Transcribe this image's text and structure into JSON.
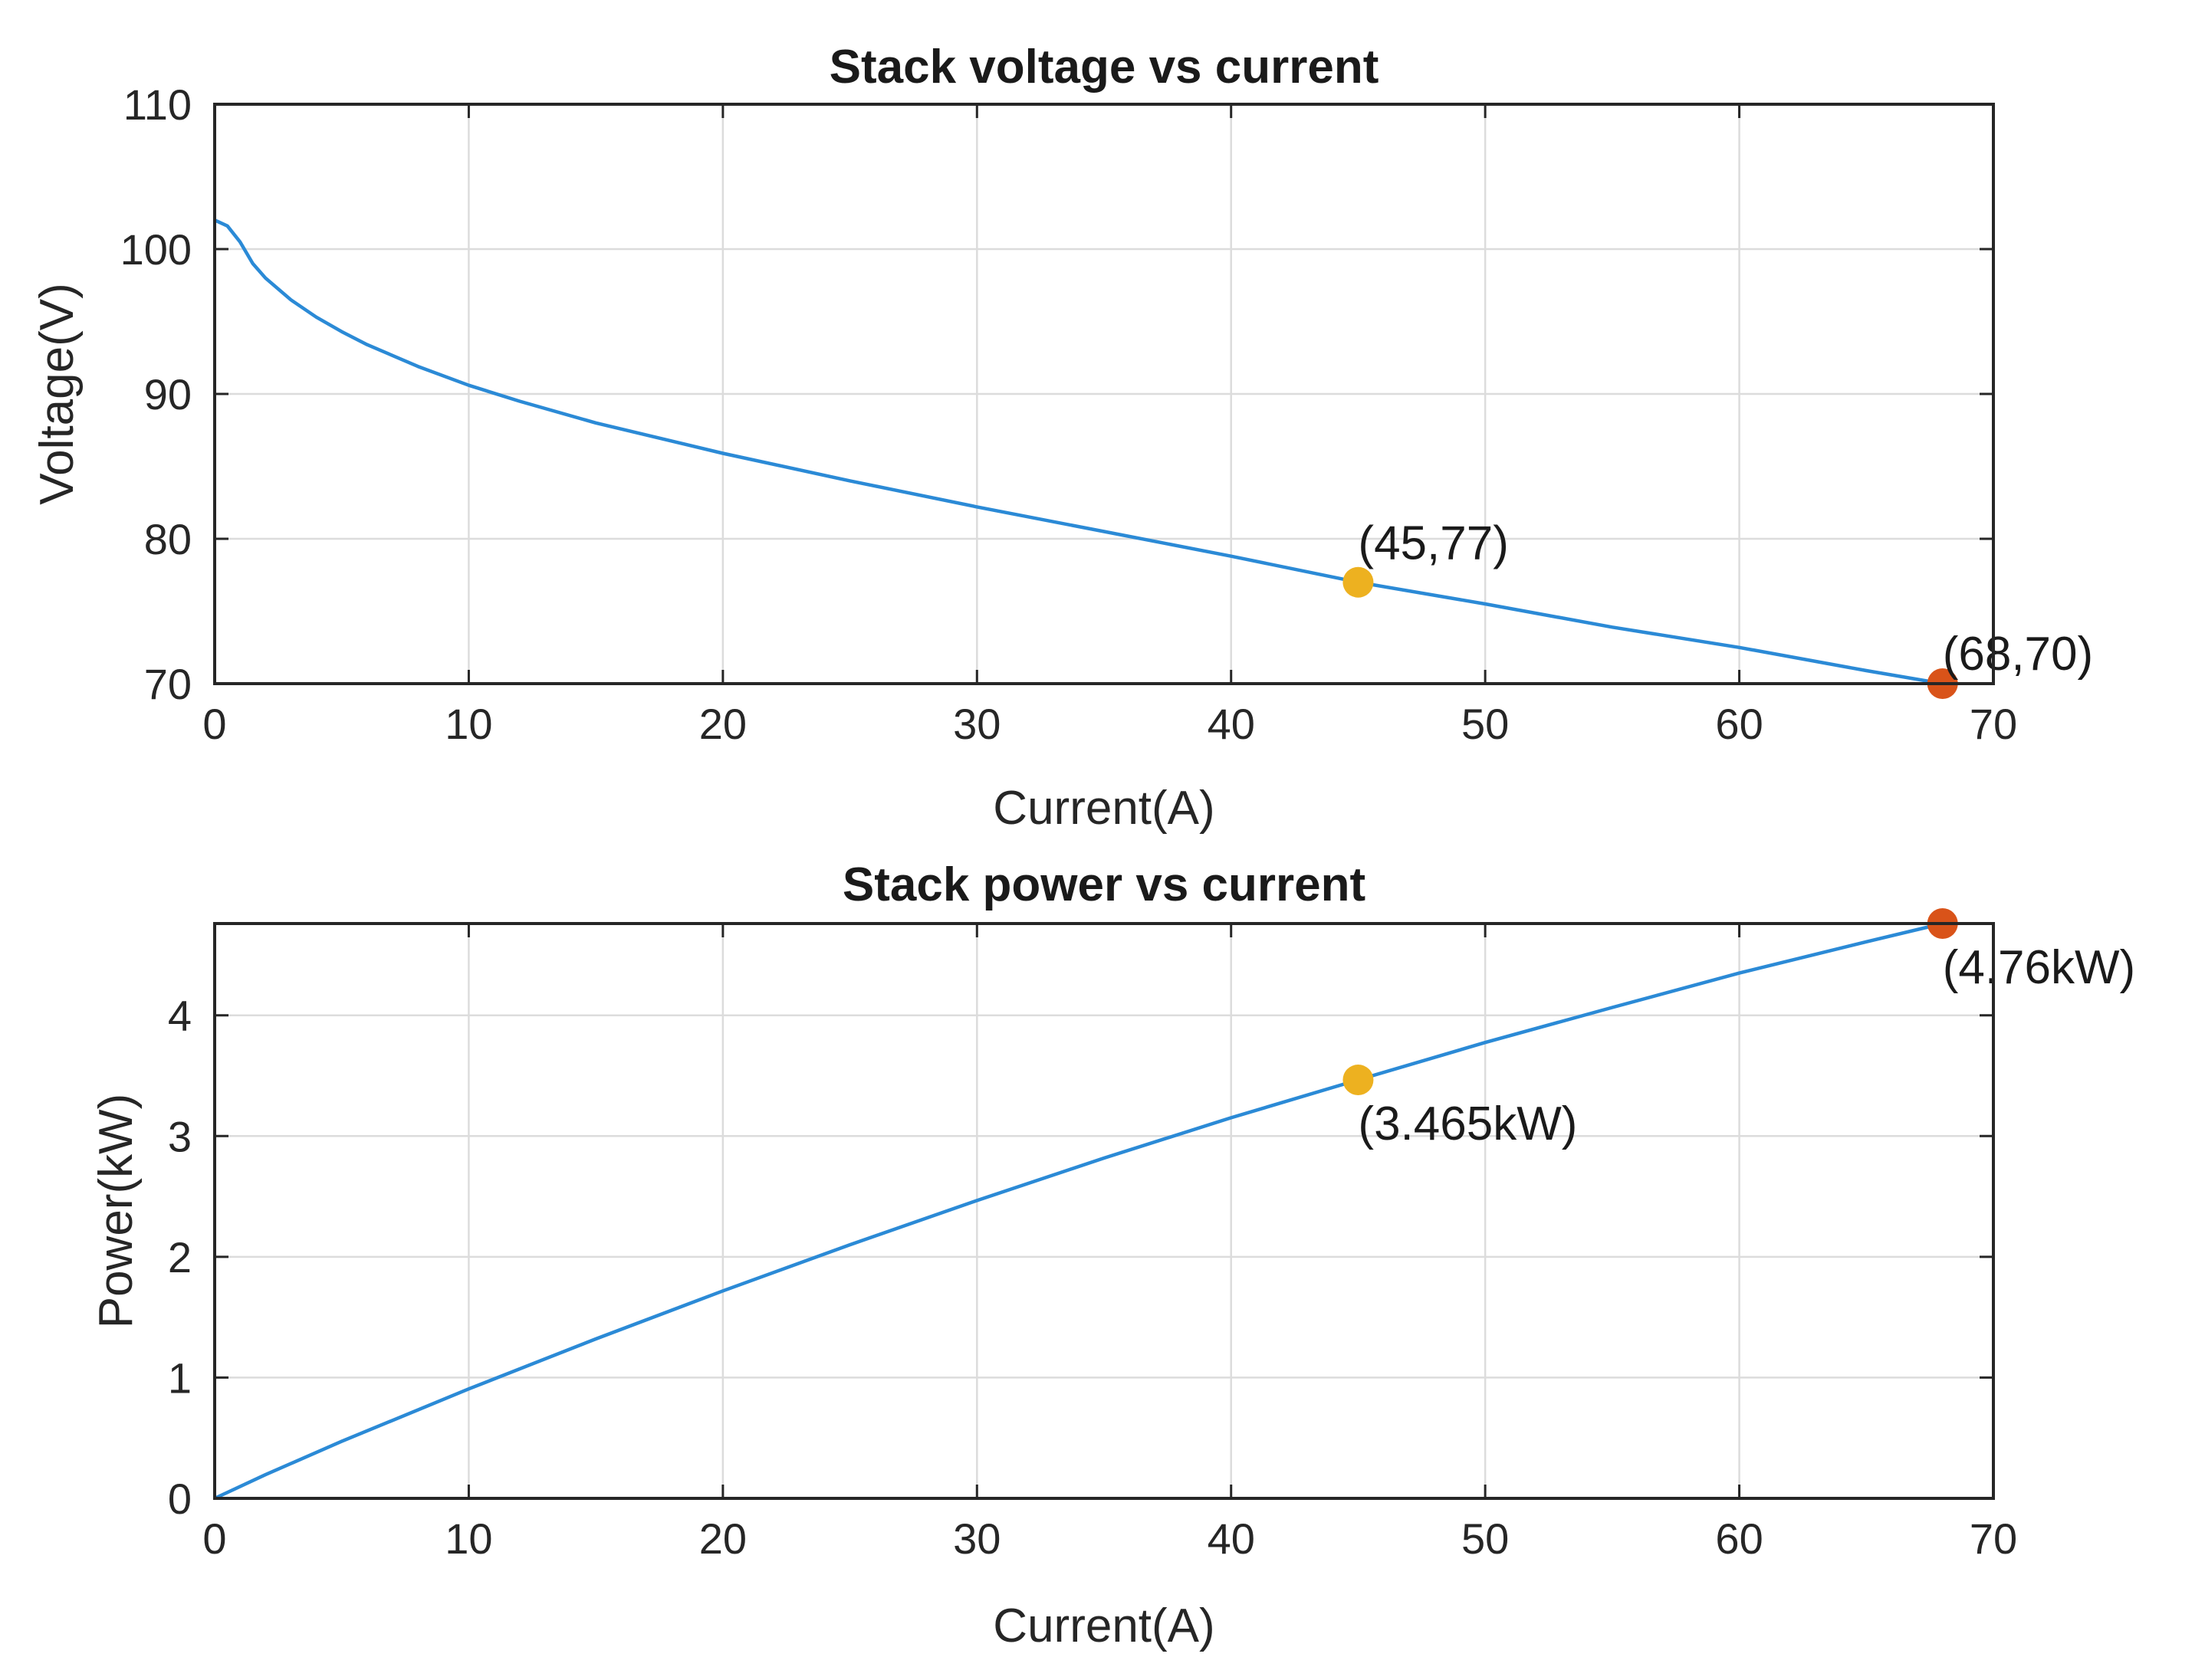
{
  "colors": {
    "line": "#2b8ad6",
    "marker_operating": "#edb120",
    "marker_max": "#d95319"
  },
  "chart_data": [
    {
      "type": "line",
      "title": "Stack voltage vs current",
      "xlabel": "Current(A)",
      "ylabel": "Voltage(V)",
      "xlim": [
        0,
        70
      ],
      "ylim": [
        70,
        110
      ],
      "xticks": [
        0,
        10,
        20,
        30,
        40,
        50,
        60,
        70
      ],
      "yticks": [
        70,
        80,
        90,
        100,
        110
      ],
      "grid": true,
      "series": [
        {
          "x": [
            0,
            0.5,
            1,
            1.5,
            2,
            3,
            4,
            5,
            6,
            8,
            10,
            12,
            15,
            20,
            25,
            30,
            35,
            40,
            45,
            50,
            55,
            60,
            65,
            68
          ],
          "y": [
            102,
            101.6,
            100.5,
            99,
            98,
            96.5,
            95.3,
            94.3,
            93.4,
            91.9,
            90.6,
            89.5,
            88,
            85.9,
            84,
            82.2,
            80.5,
            78.8,
            77,
            75.5,
            73.9,
            72.5,
            70.9,
            70
          ]
        }
      ],
      "markers": [
        {
          "x": 45,
          "y": 77,
          "label": "(45,77)",
          "color": "#edb120"
        },
        {
          "x": 68,
          "y": 70,
          "label": "(68,70)",
          "color": "#d95319"
        }
      ]
    },
    {
      "type": "line",
      "title": "Stack power vs current",
      "xlabel": "Current(A)",
      "ylabel": "Power(kW)",
      "xlim": [
        0,
        70
      ],
      "ylim": [
        0,
        4.76
      ],
      "xticks": [
        0,
        10,
        20,
        30,
        40,
        50,
        60,
        70
      ],
      "yticks": [
        0,
        1,
        2,
        3,
        4
      ],
      "grid": true,
      "series": [
        {
          "x": [
            0,
            2,
            5,
            10,
            15,
            20,
            25,
            30,
            35,
            40,
            45,
            50,
            55,
            60,
            65,
            68
          ],
          "y": [
            0,
            0.196,
            0.472,
            0.906,
            1.32,
            1.718,
            2.1,
            2.466,
            2.818,
            3.152,
            3.465,
            3.775,
            4.065,
            4.35,
            4.609,
            4.76
          ]
        }
      ],
      "markers": [
        {
          "x": 45,
          "y": 3.465,
          "label": "(3.465kW)",
          "color": "#edb120"
        },
        {
          "x": 68,
          "y": 4.76,
          "label": "(4.76kW)",
          "color": "#d95319"
        }
      ]
    }
  ]
}
